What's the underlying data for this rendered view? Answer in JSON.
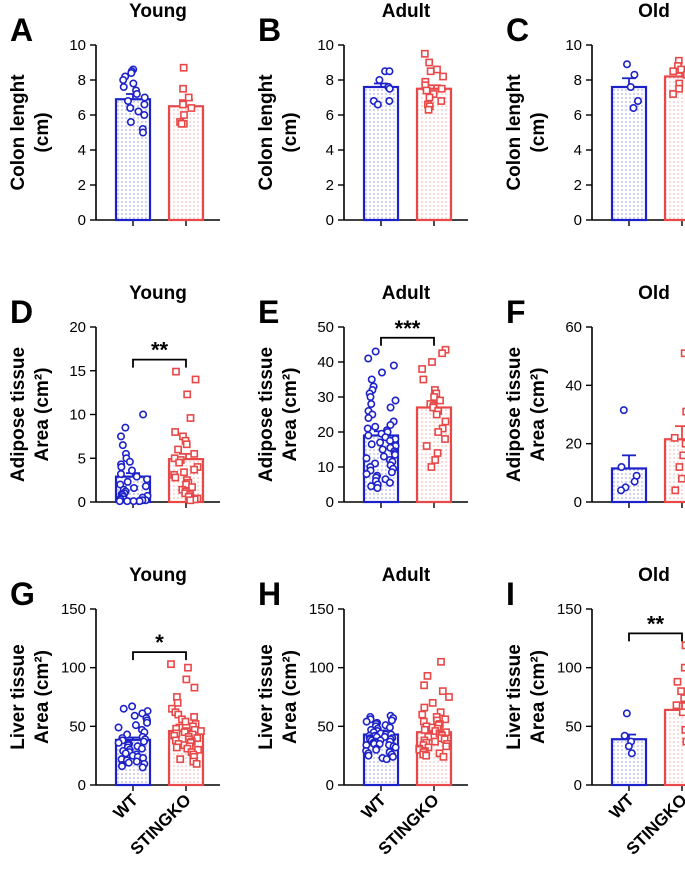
{
  "chart_data": [
    {
      "panel": "A",
      "type": "bar",
      "title": "Young",
      "ylabel": [
        "Colon lenght",
        "(cm)"
      ],
      "ylim": [
        0,
        10
      ],
      "yticks": [
        0,
        2,
        4,
        6,
        8,
        10
      ],
      "ytick_labels": [
        "0",
        "2",
        "4",
        "6",
        "8",
        "10"
      ],
      "categories": [
        "WT",
        "STINGKO"
      ],
      "show_xlabels": false,
      "significance": "",
      "series": [
        {
          "name": "WT",
          "mean": 6.9,
          "sem": 0.3,
          "points": [
            8.6,
            8.5,
            8.4,
            8.2,
            8.0,
            7.8,
            7.6,
            7.4,
            7.2,
            7.0,
            6.8,
            6.6,
            6.4,
            6.2,
            6.0,
            5.6,
            5.2,
            5.0
          ]
        },
        {
          "name": "STINGKO",
          "mean": 6.5,
          "sem": 0.35,
          "points": [
            8.7,
            7.5,
            7.0,
            6.6,
            6.4,
            6.0,
            5.6,
            5.5,
            5.5
          ]
        }
      ]
    },
    {
      "panel": "B",
      "type": "bar",
      "title": "Adult",
      "ylabel": [
        "Colon lenght",
        "(cm)"
      ],
      "ylim": [
        0,
        10
      ],
      "yticks": [
        0,
        2,
        4,
        6,
        8,
        10
      ],
      "ytick_labels": [
        "0",
        "2",
        "4",
        "6",
        "8",
        "10"
      ],
      "categories": [
        "WT",
        "STINGKO"
      ],
      "show_xlabels": false,
      "significance": "",
      "series": [
        {
          "name": "WT",
          "mean": 7.6,
          "sem": 0.2,
          "points": [
            8.5,
            8.5,
            8.0,
            7.6,
            7.6,
            7.5,
            6.8,
            6.8,
            6.6
          ]
        },
        {
          "name": "STINGKO",
          "mean": 7.5,
          "sem": 0.2,
          "points": [
            9.5,
            9.0,
            8.6,
            8.5,
            8.2,
            7.9,
            7.7,
            7.5,
            7.4,
            7.2,
            7.0,
            6.8,
            6.6,
            6.5,
            6.3
          ]
        }
      ]
    },
    {
      "panel": "C",
      "type": "bar",
      "title": "Old",
      "ylabel": [
        "Colon lenght",
        "(cm)"
      ],
      "ylim": [
        0,
        10
      ],
      "yticks": [
        0,
        2,
        4,
        6,
        8,
        10
      ],
      "ytick_labels": [
        "0",
        "2",
        "4",
        "6",
        "8",
        "10"
      ],
      "categories": [
        "WT",
        "STINGKO"
      ],
      "show_xlabels": false,
      "significance": "",
      "series": [
        {
          "name": "WT",
          "mean": 7.6,
          "sem": 0.5,
          "points": [
            8.9,
            8.3,
            7.6,
            6.8,
            6.4
          ]
        },
        {
          "name": "STINGKO",
          "mean": 8.2,
          "sem": 0.2,
          "points": [
            9.1,
            8.8,
            8.6,
            8.5,
            8.3,
            8.2,
            8.0,
            7.8,
            7.5,
            7.2
          ]
        }
      ]
    },
    {
      "panel": "D",
      "type": "bar",
      "title": "Young",
      "ylabel": [
        "Adipose tissue",
        "Area (cm²)"
      ],
      "ylim": [
        0,
        20
      ],
      "yticks": [
        0,
        5,
        10,
        15,
        20
      ],
      "ytick_labels": [
        "0",
        "5",
        "10",
        "15",
        "20"
      ],
      "categories": [
        "WT",
        "STINGKO"
      ],
      "show_xlabels": false,
      "significance": "**",
      "series": [
        {
          "name": "WT",
          "mean": 2.9,
          "sem": 0.4,
          "points": [
            10.0,
            8.5,
            7.5,
            6.5,
            5.5,
            5.0,
            4.6,
            4.3,
            4.0,
            3.6,
            3.2,
            2.9,
            2.6,
            2.3,
            2.0,
            1.8,
            1.6,
            1.4,
            1.2,
            1.0,
            0.9,
            0.8,
            0.7,
            0.6,
            0.5,
            0.4,
            0.3,
            0.3,
            0.2,
            0.2,
            0.1,
            0.1,
            0.1,
            0.1,
            0.1
          ]
        },
        {
          "name": "STINGKO",
          "mean": 4.9,
          "sem": 0.6,
          "points": [
            14.9,
            14.0,
            12.3,
            9.6,
            8.0,
            7.5,
            7.0,
            6.6,
            6.0,
            5.5,
            5.0,
            4.8,
            4.5,
            4.0,
            3.7,
            3.4,
            3.1,
            2.8,
            2.5,
            2.2,
            2.0,
            1.7,
            1.4,
            1.2,
            1.0,
            0.8,
            0.6,
            0.4,
            0.3,
            0.2
          ]
        }
      ]
    },
    {
      "panel": "E",
      "type": "bar",
      "title": "Adult",
      "ylabel": [
        "Adipose tissue",
        "Area (cm²)"
      ],
      "ylim": [
        0,
        50
      ],
      "yticks": [
        0,
        10,
        20,
        30,
        40,
        50
      ],
      "ytick_labels": [
        "0",
        "10",
        "20",
        "30",
        "40",
        "50"
      ],
      "categories": [
        "WT",
        "STINGKO"
      ],
      "show_xlabels": false,
      "significance": "***",
      "series": [
        {
          "name": "WT",
          "mean": 19.0,
          "sem": 1.2,
          "points": [
            43,
            41,
            39,
            37,
            35,
            33,
            32,
            31,
            30,
            29,
            28,
            27,
            26,
            25,
            24,
            23,
            22,
            21.5,
            21,
            20.5,
            20,
            19.5,
            19,
            18.5,
            18,
            17.5,
            17,
            16.5,
            16,
            15.5,
            15,
            14.5,
            14,
            13.5,
            13,
            12.5,
            12,
            11.5,
            11,
            10.5,
            10,
            9.5,
            9,
            8.5,
            8,
            7.5,
            7,
            6.5,
            6,
            5.5,
            5,
            4.5,
            4
          ]
        },
        {
          "name": "STINGKO",
          "mean": 27.0,
          "sem": 1.7,
          "points": [
            43.5,
            42.5,
            40,
            38,
            35,
            32,
            31,
            30,
            29,
            28,
            27.5,
            27,
            26,
            25,
            23,
            21,
            20,
            18,
            16,
            14,
            12,
            10
          ]
        }
      ]
    },
    {
      "panel": "F",
      "type": "bar",
      "title": "Old",
      "ylabel": [
        "Adipose tissue",
        "Area (cm²)"
      ],
      "ylim": [
        0,
        60
      ],
      "yticks": [
        0,
        20,
        40,
        60
      ],
      "ytick_labels": [
        "0",
        "20",
        "40",
        "60"
      ],
      "categories": [
        "WT",
        "STINGKO"
      ],
      "show_xlabels": false,
      "significance": "",
      "series": [
        {
          "name": "WT",
          "mean": 11.5,
          "sem": 4.5,
          "points": [
            31.5,
            12,
            9,
            7,
            5,
            4
          ]
        },
        {
          "name": "STINGKO",
          "mean": 21.5,
          "sem": 4.5,
          "points": [
            51,
            47,
            38,
            31,
            25,
            22,
            20,
            16,
            12,
            8,
            5,
            4,
            3
          ]
        }
      ]
    },
    {
      "panel": "G",
      "type": "bar",
      "title": "Young",
      "ylabel": [
        "Liver tissue",
        "Area (cm²)"
      ],
      "ylim": [
        0,
        150
      ],
      "yticks": [
        0,
        50,
        100,
        150
      ],
      "ytick_labels": [
        "0",
        "50",
        "100",
        "150"
      ],
      "categories": [
        "WT",
        "STINGKO"
      ],
      "show_xlabels": true,
      "significance": "*",
      "series": [
        {
          "name": "WT",
          "mean": 38.5,
          "sem": 2.0,
          "points": [
            67,
            65,
            63,
            61,
            59,
            57,
            55,
            53,
            51,
            49,
            47,
            45,
            43,
            41,
            40,
            39,
            38,
            37,
            36,
            35,
            34,
            33,
            32,
            31,
            30,
            29,
            28,
            27,
            26,
            25,
            24,
            23,
            22,
            21,
            20,
            19,
            18,
            17,
            16,
            15
          ]
        },
        {
          "name": "STINGKO",
          "mean": 46.0,
          "sem": 2.5,
          "points": [
            103,
            100,
            90,
            83,
            75,
            70,
            65,
            62,
            60,
            58,
            56,
            54,
            52,
            50,
            49,
            48,
            47,
            46,
            45,
            44,
            43,
            42,
            41,
            40,
            39,
            38,
            37,
            36,
            35,
            34,
            33,
            32,
            31,
            30,
            28,
            26,
            24,
            22,
            20,
            18
          ]
        }
      ]
    },
    {
      "panel": "H",
      "type": "bar",
      "title": "Adult",
      "ylabel": [
        "Liver tissue",
        "Area (cm²)"
      ],
      "ylim": [
        0,
        150
      ],
      "yticks": [
        0,
        50,
        100,
        150
      ],
      "ytick_labels": [
        "0",
        "50",
        "100",
        "150"
      ],
      "categories": [
        "WT",
        "STINGKO"
      ],
      "show_xlabels": true,
      "significance": "",
      "series": [
        {
          "name": "WT",
          "mean": 43.0,
          "sem": 1.0,
          "points": [
            59,
            58,
            57,
            56,
            55,
            54,
            53,
            52,
            51,
            50,
            49,
            48,
            47,
            46,
            45,
            44,
            44,
            43,
            43,
            42,
            42,
            41,
            41,
            40,
            40,
            39,
            39,
            38,
            38,
            37,
            37,
            36,
            36,
            35,
            35,
            34,
            34,
            33,
            32,
            31,
            30,
            29,
            28,
            27,
            26,
            25,
            24,
            23,
            22
          ]
        },
        {
          "name": "STINGKO",
          "mean": 45.0,
          "sem": 2.0,
          "points": [
            105,
            93,
            85,
            80,
            75,
            70,
            66,
            62,
            60,
            58,
            56,
            55,
            54,
            52,
            51,
            50,
            49,
            48,
            47,
            46,
            45,
            44,
            43,
            42,
            41,
            40,
            39,
            38,
            37,
            36,
            35,
            34,
            33,
            32,
            31,
            30,
            29,
            28,
            27,
            26,
            25,
            24
          ]
        }
      ]
    },
    {
      "panel": "I",
      "type": "bar",
      "title": "Old",
      "ylabel": [
        "Liver tissue",
        "Area (cm²)"
      ],
      "ylim": [
        0,
        150
      ],
      "yticks": [
        0,
        50,
        100,
        150
      ],
      "ytick_labels": [
        "0",
        "50",
        "100",
        "150"
      ],
      "categories": [
        "WT",
        "STINGKO"
      ],
      "show_xlabels": true,
      "significance": "**",
      "series": [
        {
          "name": "WT",
          "mean": 39.0,
          "sem": 4.0,
          "points": [
            61,
            42,
            37,
            33,
            27
          ]
        },
        {
          "name": "STINGKO",
          "mean": 64.0,
          "sem": 6.0,
          "points": [
            119,
            100,
            88,
            80,
            74,
            68,
            62,
            55,
            47,
            37
          ]
        }
      ]
    }
  ],
  "colors": {
    "wt": "#1d22c8",
    "ko": "#e84848",
    "axis": "#000000"
  }
}
